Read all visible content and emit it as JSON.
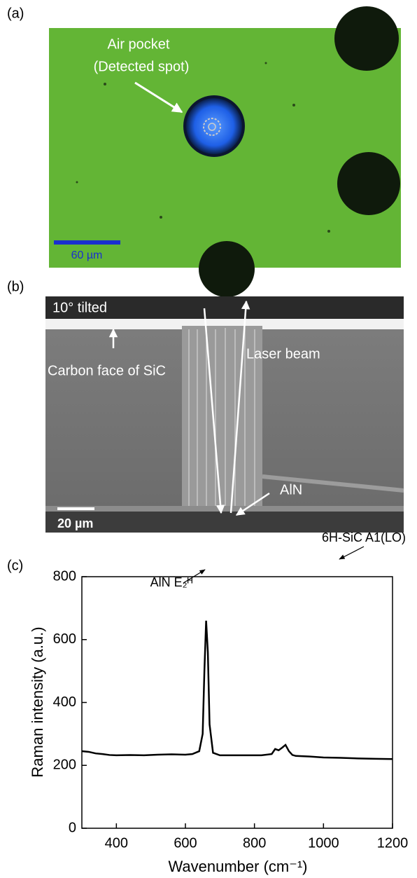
{
  "panels": [
    {
      "label": "(a)",
      "texts": [
        "Air pocket",
        "(Detected spot)",
        "60 µm"
      ]
    },
    {
      "label": "(b)",
      "texts": [
        "10° tilted",
        "Carbon face of SiC",
        "Laser beam",
        "AlN",
        "20 µm"
      ]
    },
    {
      "label": "(c)"
    }
  ],
  "chart_data": {
    "type": "line",
    "xlabel": "Wavenumber (cm⁻¹)",
    "ylabel": "Raman intensity (a.u.)",
    "x": [
      300,
      320,
      340,
      360,
      380,
      400,
      440,
      480,
      520,
      560,
      600,
      620,
      640,
      650,
      655,
      660,
      665,
      670,
      680,
      700,
      740,
      780,
      820,
      850,
      860,
      870,
      880,
      890,
      900,
      910,
      920,
      960,
      1000,
      1050,
      1100,
      1150,
      1200
    ],
    "values": [
      245,
      243,
      238,
      236,
      233,
      232,
      233,
      232,
      234,
      235,
      234,
      236,
      245,
      300,
      500,
      660,
      560,
      330,
      240,
      232,
      232,
      232,
      232,
      236,
      252,
      248,
      256,
      265,
      245,
      233,
      230,
      228,
      225,
      224,
      222,
      221,
      220
    ],
    "color": "#000000",
    "xlim": [
      300,
      1200
    ],
    "ylim": [
      0,
      800
    ],
    "xticks": [
      400,
      600,
      800,
      1000,
      1200
    ],
    "yticks": [
      0,
      200,
      400,
      600,
      800
    ],
    "annotations": [
      "AlN E₂ᴴ",
      "6H-SiC A1(LO)"
    ]
  }
}
